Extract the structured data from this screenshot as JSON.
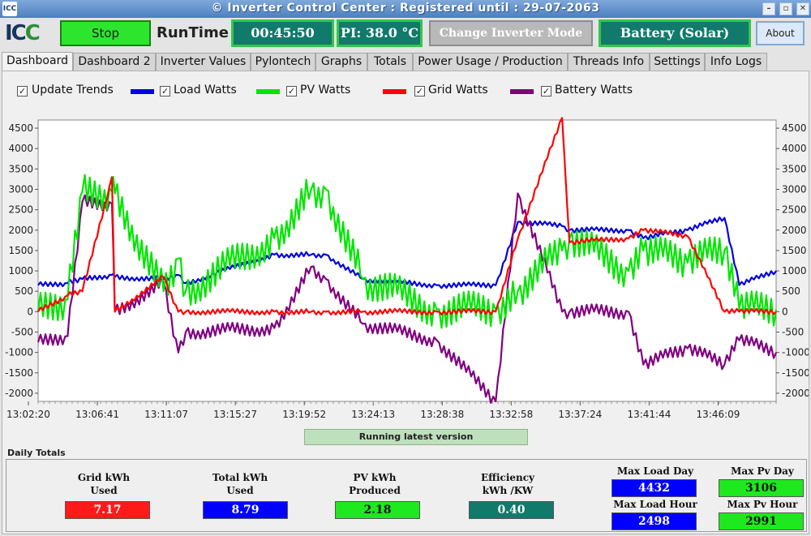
{
  "title": "© Inverter Control Center : Registered until : 29-07-2063",
  "logo": {
    "text_a": "IC",
    "text_b": "C"
  },
  "topbar": {
    "stop_label": "Stop",
    "runtime_label": "RunTime",
    "runtime_value": "00:45:50",
    "pi_temp": "PI: 38.0 °C",
    "change_mode_label": "Change Inverter Mode",
    "mode_value": "Battery (Solar)",
    "about_label": "About"
  },
  "tabs": [
    "Dashboard",
    "Dashboard 2",
    "Inverter Values",
    "Pylontech",
    "Graphs",
    "Totals",
    "Power Usage / Production",
    "Threads Info",
    "Settings",
    "Info Logs"
  ],
  "legend": {
    "update_trends": "Update Trends",
    "load": "Load Watts",
    "pv": "PV Watts",
    "grid": "Grid Watts",
    "battery": "Battery Watts"
  },
  "status_text": "Running  latest version",
  "daily": {
    "title": "Daily Totals",
    "grid_label": "Grid kWh\nUsed",
    "grid_value": "7.17",
    "total_label": "Total kWh\nUsed",
    "total_value": "8.79",
    "pv_label": "PV kWh\nProduced",
    "pv_value": "2.18",
    "eff_label": "Efficiency\nkWh /KW",
    "eff_value": "0.40",
    "max_load_day_label": "Max Load Day",
    "max_load_day_value": "4432",
    "max_pv_day_label": "Max Pv Day",
    "max_pv_day_value": "3106",
    "max_load_hour_label": "Max Load Hour",
    "max_load_hour_value": "2498",
    "max_pv_hour_label": "Max Pv Hour",
    "max_pv_hour_value": "2991"
  },
  "colors": {
    "load": "#0000e0",
    "pv": "#00e600",
    "grid": "#ff0000",
    "battery": "#800080",
    "red_box": "#ff1a1a",
    "blue_box": "#0000ff",
    "teal_box": "#117a6b",
    "green_box": "#1ee81e"
  },
  "chart_data": {
    "type": "line",
    "ylim": [
      -2200,
      4700
    ],
    "yticks": [
      4500,
      4000,
      3500,
      3000,
      2500,
      2000,
      1500,
      1000,
      500,
      0,
      -500,
      -1000,
      -1500,
      -2000
    ],
    "xticks": [
      "13:02:20",
      "13:06:41",
      "13:11:07",
      "13:15:27",
      "13:19:52",
      "13:24:13",
      "13:28:38",
      "13:32:58",
      "13:37:24",
      "13:41:44",
      "13:46:09"
    ],
    "x_minutes": [
      0,
      2,
      3,
      5,
      5.2,
      8.5,
      9.5,
      10,
      16,
      18.5,
      19.5,
      22,
      27,
      31,
      32.5,
      35.5,
      36,
      40,
      41,
      44,
      46.5,
      47.5,
      50
    ],
    "series": [
      {
        "name": "Load Watts",
        "values": [
          650,
          700,
          800,
          900,
          850,
          800,
          900,
          700,
          1400,
          1400,
          1400,
          800,
          650,
          650,
          2200,
          2100,
          2000,
          2000,
          1800,
          2000,
          2300,
          650,
          1000
        ]
      },
      {
        "name": "PV Watts",
        "values": [
          0,
          300,
          2950,
          2950,
          2900,
          500,
          1300,
          500,
          1800,
          3000,
          3000,
          800,
          50,
          50,
          500,
          1500,
          1800,
          1000,
          1500,
          1200,
          1500,
          50,
          50
        ]
      },
      {
        "name": "Grid Watts",
        "values": [
          0,
          400,
          500,
          3300,
          0,
          850,
          0,
          0,
          0,
          0,
          0,
          0,
          0,
          0,
          1800,
          4750,
          1700,
          1800,
          2000,
          1850,
          0,
          0,
          0
        ]
      },
      {
        "name": "Battery Watts",
        "values": [
          -750,
          -600,
          2700,
          2650,
          0,
          700,
          -1000,
          -500,
          -400,
          1100,
          800,
          -300,
          -700,
          -2200,
          2900,
          0,
          0,
          0,
          -1300,
          -900,
          -1300,
          -700,
          -1000
        ]
      }
    ]
  }
}
